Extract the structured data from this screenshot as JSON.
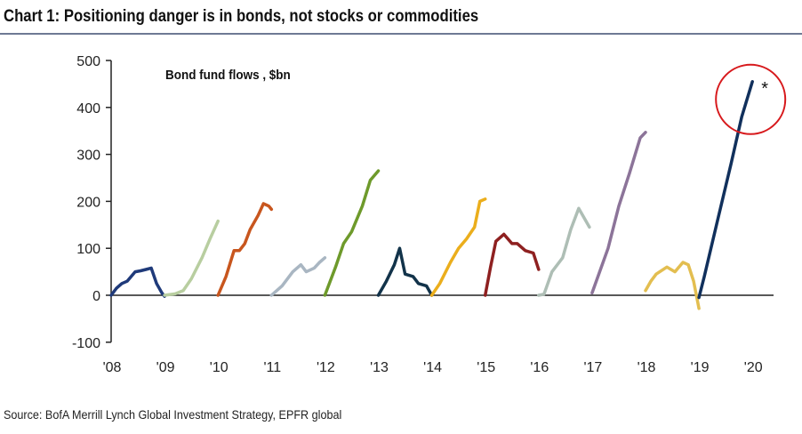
{
  "title": "Chart 1: Positioning danger is in bonds, not stocks or commodities",
  "source": "Source: BofA Merrill Lynch Global Investment Strategy, EPFR global",
  "chart_data": {
    "type": "line",
    "title": "Bond fund flows , $bn",
    "xlabel": "",
    "ylabel": "",
    "ylim": [
      -100,
      500
    ],
    "xlim": [
      2008,
      2020.4
    ],
    "yticks": [
      -100,
      0,
      100,
      200,
      300,
      400,
      500
    ],
    "xticks": [
      {
        "value": 2008,
        "label": "'08"
      },
      {
        "value": 2009,
        "label": "'09"
      },
      {
        "value": 2010,
        "label": "'10"
      },
      {
        "value": 2011,
        "label": "'11"
      },
      {
        "value": 2012,
        "label": "'12"
      },
      {
        "value": 2013,
        "label": "'13"
      },
      {
        "value": 2014,
        "label": "'14"
      },
      {
        "value": 2015,
        "label": "'15"
      },
      {
        "value": 2016,
        "label": "'16"
      },
      {
        "value": 2017,
        "label": "'17"
      },
      {
        "value": 2018,
        "label": "'18"
      },
      {
        "value": 2019,
        "label": "'19"
      },
      {
        "value": 2020,
        "label": "'20"
      }
    ],
    "grid": false,
    "annotation": {
      "text": "*",
      "x": 2020.0,
      "y": 455,
      "highlight_color": "#D7191C"
    },
    "series": [
      {
        "name": "2008",
        "color": "#1F3A7A",
        "x": [
          2008.0,
          2008.1,
          2008.2,
          2008.3,
          2008.45,
          2008.55,
          2008.65,
          2008.75,
          2008.85,
          2008.95,
          2009.0
        ],
        "y": [
          0,
          15,
          25,
          30,
          50,
          52,
          55,
          58,
          25,
          5,
          -2
        ]
      },
      {
        "name": "2009",
        "color": "#B8CEA0",
        "x": [
          2009.0,
          2009.2,
          2009.35,
          2009.5,
          2009.7,
          2009.85,
          2010.0
        ],
        "y": [
          0,
          3,
          10,
          35,
          80,
          120,
          158
        ]
      },
      {
        "name": "2010",
        "color": "#C8561E",
        "x": [
          2010.0,
          2010.15,
          2010.3,
          2010.4,
          2010.5,
          2010.6,
          2010.75,
          2010.85,
          2010.95,
          2011.0
        ],
        "y": [
          0,
          40,
          95,
          95,
          110,
          140,
          170,
          195,
          190,
          183
        ]
      },
      {
        "name": "2011",
        "color": "#A9B6C2",
        "x": [
          2011.0,
          2011.2,
          2011.4,
          2011.55,
          2011.65,
          2011.8,
          2011.9,
          2012.0
        ],
        "y": [
          0,
          20,
          50,
          65,
          50,
          58,
          70,
          80
        ]
      },
      {
        "name": "2012",
        "color": "#6E9A2B",
        "x": [
          2012.0,
          2012.2,
          2012.35,
          2012.5,
          2012.7,
          2012.85,
          2013.0
        ],
        "y": [
          0,
          60,
          110,
          135,
          190,
          245,
          265
        ]
      },
      {
        "name": "2013",
        "color": "#12334A",
        "x": [
          2013.0,
          2013.15,
          2013.3,
          2013.4,
          2013.5,
          2013.65,
          2013.75,
          2013.9,
          2014.0
        ],
        "y": [
          0,
          30,
          65,
          100,
          45,
          40,
          25,
          20,
          0
        ]
      },
      {
        "name": "2014",
        "color": "#EBAE1C",
        "x": [
          2014.0,
          2014.15,
          2014.35,
          2014.5,
          2014.65,
          2014.8,
          2014.9,
          2015.0
        ],
        "y": [
          0,
          25,
          70,
          100,
          120,
          145,
          200,
          205
        ]
      },
      {
        "name": "2015",
        "color": "#8E2020",
        "x": [
          2015.0,
          2015.1,
          2015.2,
          2015.35,
          2015.5,
          2015.6,
          2015.75,
          2015.9,
          2016.0
        ],
        "y": [
          0,
          60,
          115,
          130,
          110,
          110,
          95,
          90,
          55
        ]
      },
      {
        "name": "2016",
        "color": "#AEBEB5",
        "x": [
          2016.0,
          2016.1,
          2016.25,
          2016.45,
          2016.6,
          2016.75,
          2016.85,
          2016.95
        ],
        "y": [
          0,
          2,
          50,
          80,
          140,
          185,
          165,
          145
        ]
      },
      {
        "name": "2017",
        "color": "#8C7499",
        "x": [
          2017.0,
          2017.3,
          2017.5,
          2017.7,
          2017.9,
          2018.0
        ],
        "y": [
          5,
          100,
          190,
          260,
          335,
          347
        ]
      },
      {
        "name": "2018",
        "color": "#E3BE50",
        "x": [
          2018.0,
          2018.1,
          2018.2,
          2018.4,
          2018.55,
          2018.7,
          2018.8,
          2018.9,
          2019.0
        ],
        "y": [
          10,
          30,
          45,
          60,
          50,
          70,
          65,
          30,
          -28
        ]
      },
      {
        "name": "2019",
        "color": "#11305C",
        "x": [
          2019.0,
          2019.1,
          2019.35,
          2019.6,
          2019.8,
          2020.0
        ],
        "y": [
          -5,
          40,
          160,
          280,
          380,
          455
        ]
      }
    ]
  }
}
